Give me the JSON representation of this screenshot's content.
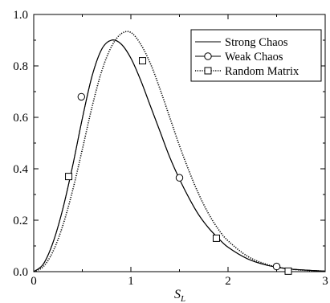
{
  "chart_data": {
    "type": "line",
    "title": "",
    "xlabel": "S",
    "xlabel_subscript": "L",
    "ylabel": "",
    "xlim": [
      0,
      3
    ],
    "ylim": [
      0,
      1.0
    ],
    "x_ticks": [
      0,
      1,
      2,
      3
    ],
    "x_tick_labels": [
      "0",
      "1",
      "2",
      "3"
    ],
    "y_ticks": [
      0.0,
      0.2,
      0.4,
      0.6,
      0.8,
      1.0
    ],
    "y_tick_labels": [
      "0.0",
      "0.2",
      "0.4",
      "0.6",
      "0.8",
      "1.0"
    ],
    "grid": false,
    "legend_position": "top-right",
    "series": [
      {
        "name": "Strong Chaos",
        "style": "solid",
        "marker": "none",
        "x": [
          0.0,
          0.1,
          0.2,
          0.3,
          0.4,
          0.5,
          0.6,
          0.7,
          0.8,
          0.9,
          1.0,
          1.1,
          1.2,
          1.3,
          1.4,
          1.5,
          1.6,
          1.7,
          1.8,
          1.9,
          2.0,
          2.2,
          2.4,
          2.6,
          2.8,
          3.0
        ],
        "y": [
          0.0,
          0.03,
          0.115,
          0.245,
          0.41,
          0.595,
          0.76,
          0.865,
          0.9,
          0.885,
          0.83,
          0.745,
          0.645,
          0.545,
          0.445,
          0.36,
          0.285,
          0.22,
          0.17,
          0.13,
          0.095,
          0.05,
          0.025,
          0.012,
          0.006,
          0.002
        ]
      },
      {
        "name": "Weak Chaos",
        "style": "solid",
        "marker": "circle",
        "x": [
          0.0,
          0.1,
          0.2,
          0.3,
          0.4,
          0.5,
          0.6,
          0.7,
          0.8,
          0.9,
          1.0,
          1.1,
          1.2,
          1.3,
          1.4,
          1.5,
          1.6,
          1.7,
          1.8,
          1.9,
          2.0,
          2.2,
          2.4,
          2.6,
          2.8,
          3.0
        ],
        "y": [
          0.0,
          0.03,
          0.115,
          0.245,
          0.41,
          0.595,
          0.76,
          0.865,
          0.9,
          0.885,
          0.83,
          0.745,
          0.645,
          0.545,
          0.445,
          0.36,
          0.285,
          0.22,
          0.17,
          0.13,
          0.095,
          0.05,
          0.025,
          0.012,
          0.006,
          0.002
        ],
        "marker_x": [
          0.49,
          1.5,
          2.5
        ],
        "marker_y": [
          0.68,
          0.365,
          0.02
        ]
      },
      {
        "name": "Random Matrix",
        "style": "dotted",
        "marker": "square",
        "x": [
          0.0,
          0.1,
          0.2,
          0.3,
          0.4,
          0.5,
          0.6,
          0.7,
          0.8,
          0.9,
          1.0,
          1.1,
          1.2,
          1.3,
          1.4,
          1.5,
          1.6,
          1.7,
          1.8,
          1.9,
          2.0,
          2.2,
          2.4,
          2.6,
          2.8,
          3.0
        ],
        "y": [
          0.0,
          0.02,
          0.08,
          0.18,
          0.315,
          0.475,
          0.64,
          0.78,
          0.875,
          0.925,
          0.93,
          0.885,
          0.81,
          0.71,
          0.6,
          0.49,
          0.39,
          0.3,
          0.225,
          0.165,
          0.12,
          0.06,
          0.028,
          0.012,
          0.005,
          0.002
        ],
        "marker_x": [
          0.36,
          1.12,
          1.88,
          2.62
        ],
        "marker_y": [
          0.37,
          0.82,
          0.13,
          0.002
        ]
      }
    ]
  }
}
